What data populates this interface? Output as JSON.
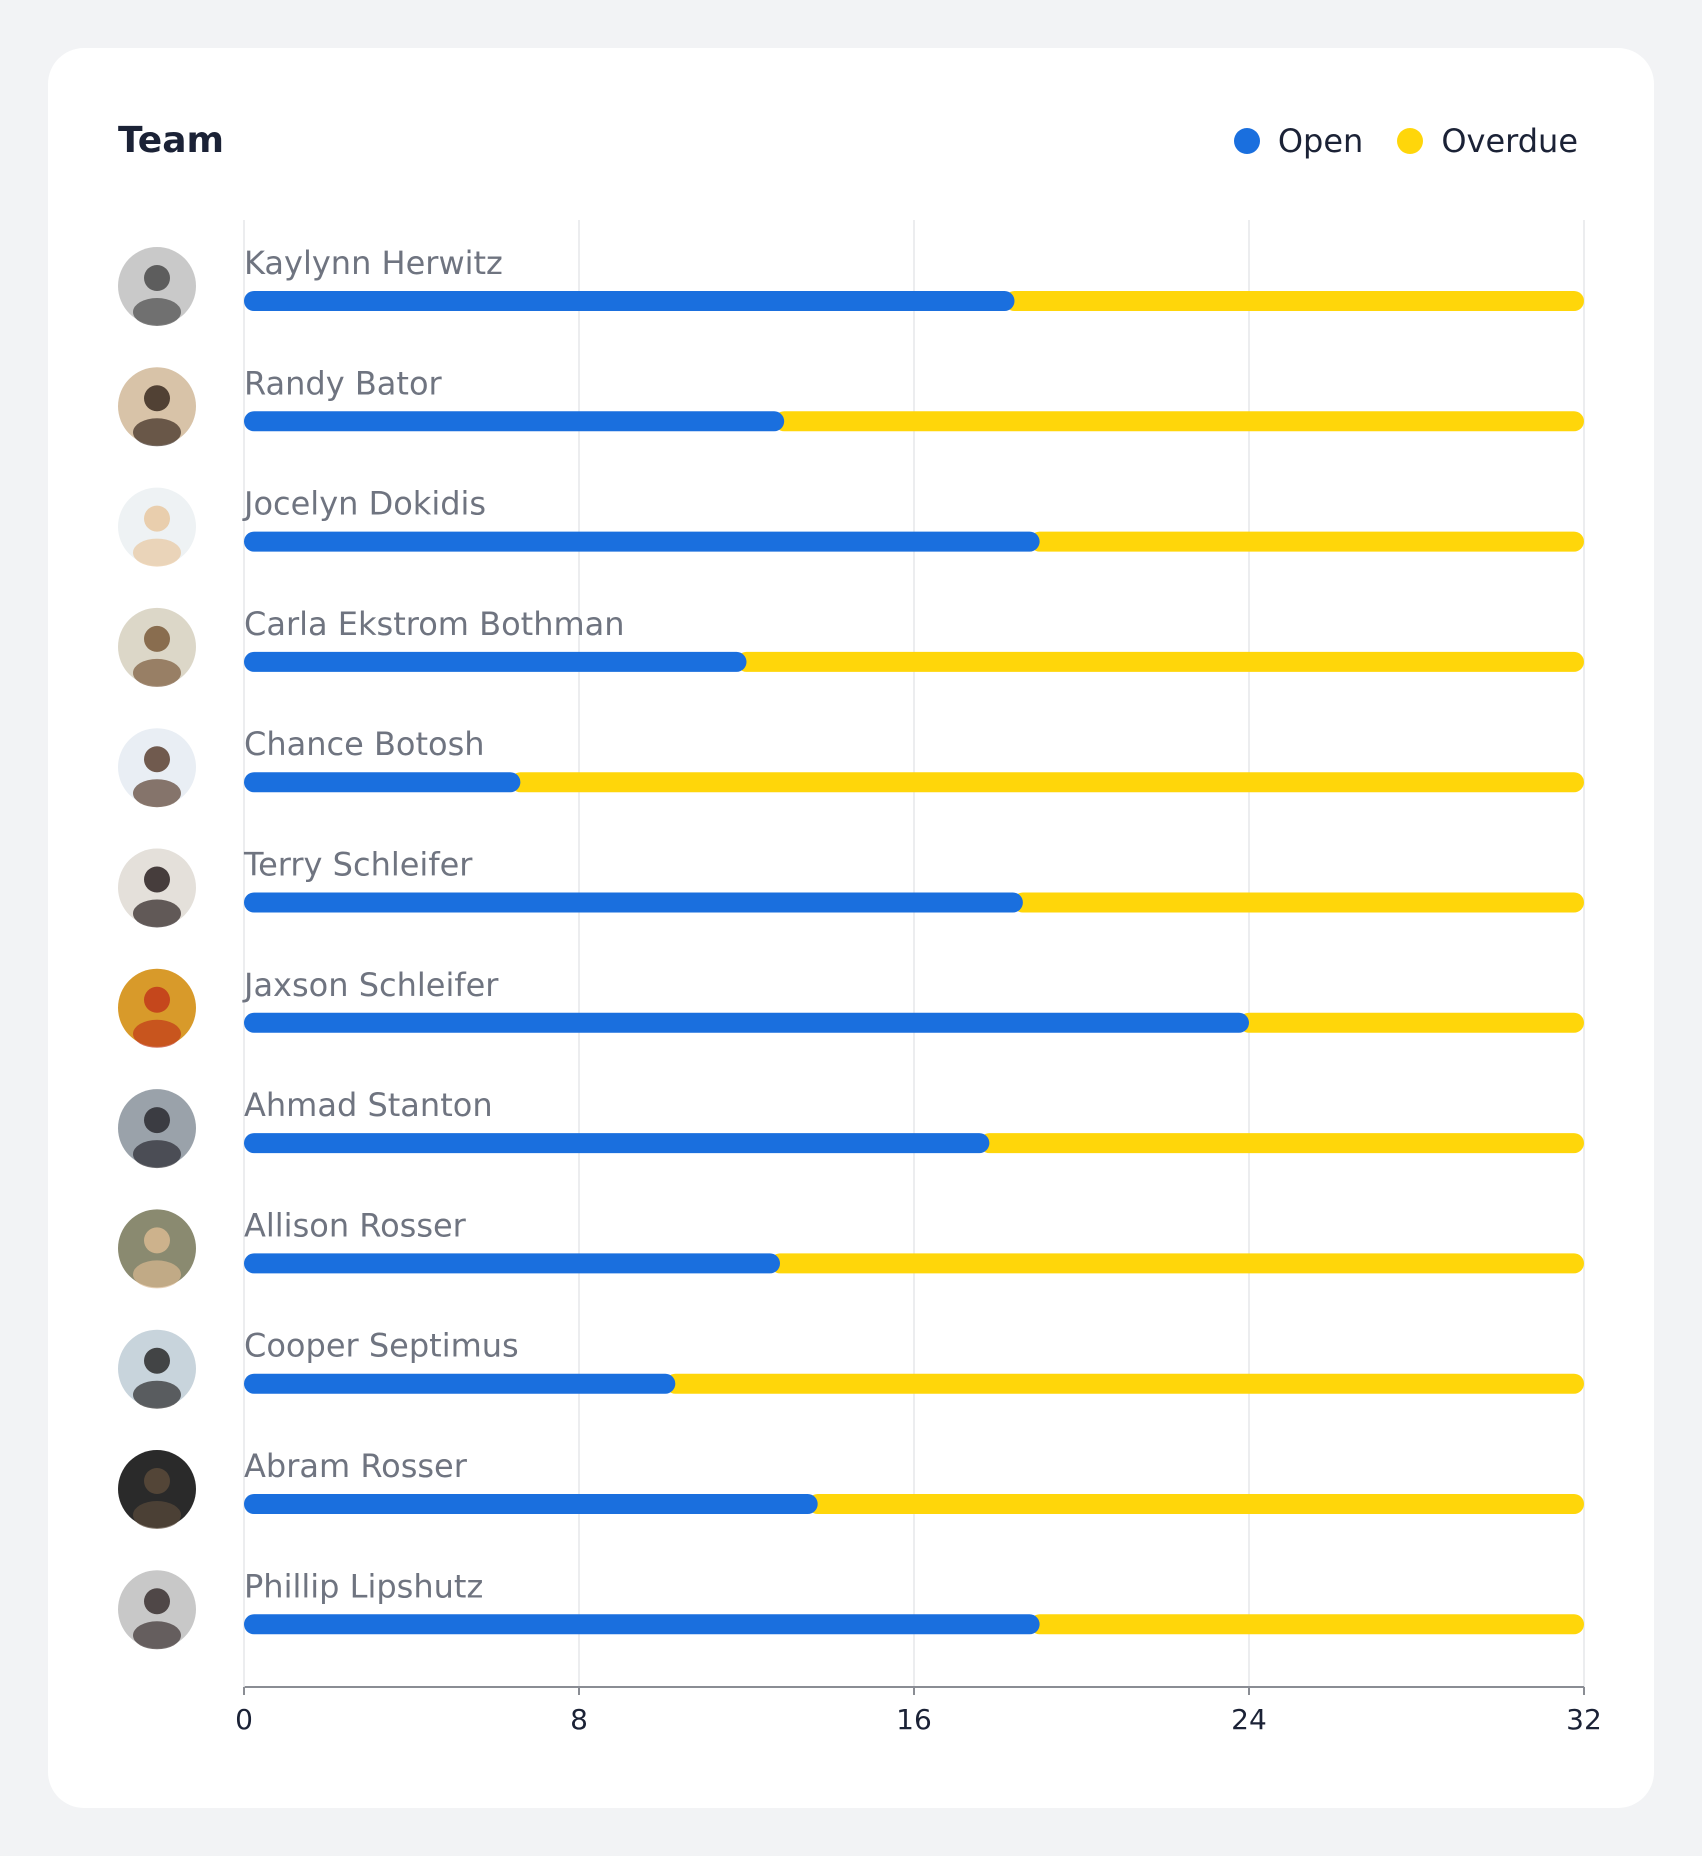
{
  "title": "Team",
  "legend": [
    {
      "label": "Open",
      "color": "#1a6fde"
    },
    {
      "label": "Overdue",
      "color": "#ffd60a"
    }
  ],
  "chart_data": {
    "type": "bar",
    "orientation": "horizontal",
    "stacked": true,
    "title": "Team",
    "xlabel": "",
    "ylabel": "",
    "xlim": [
      0,
      32
    ],
    "xticks": [
      0,
      8,
      16,
      24,
      32
    ],
    "grid": true,
    "legend_position": "top-right",
    "categories": [
      "Kaylynn Herwitz",
      "Randy Bator",
      "Jocelyn Dokidis",
      "Carla Ekstrom Bothman",
      "Chance Botosh",
      "Terry Schleifer",
      "Jaxson Schleifer",
      "Ahmad Stanton",
      "Allison Rosser",
      "Cooper Septimus",
      "Abram Rosser",
      "Phillip Lipshutz"
    ],
    "series": [
      {
        "name": "Open",
        "color": "#1a6fde",
        "values": [
          18.4,
          12.9,
          19.0,
          12.0,
          6.6,
          18.6,
          24.0,
          17.8,
          12.8,
          10.3,
          13.7,
          19.0
        ]
      },
      {
        "name": "Overdue",
        "color": "#ffd60a",
        "values": [
          13.6,
          19.1,
          13.0,
          20.0,
          25.4,
          13.4,
          8.0,
          14.2,
          19.2,
          21.7,
          18.3,
          13.0
        ]
      }
    ]
  }
}
